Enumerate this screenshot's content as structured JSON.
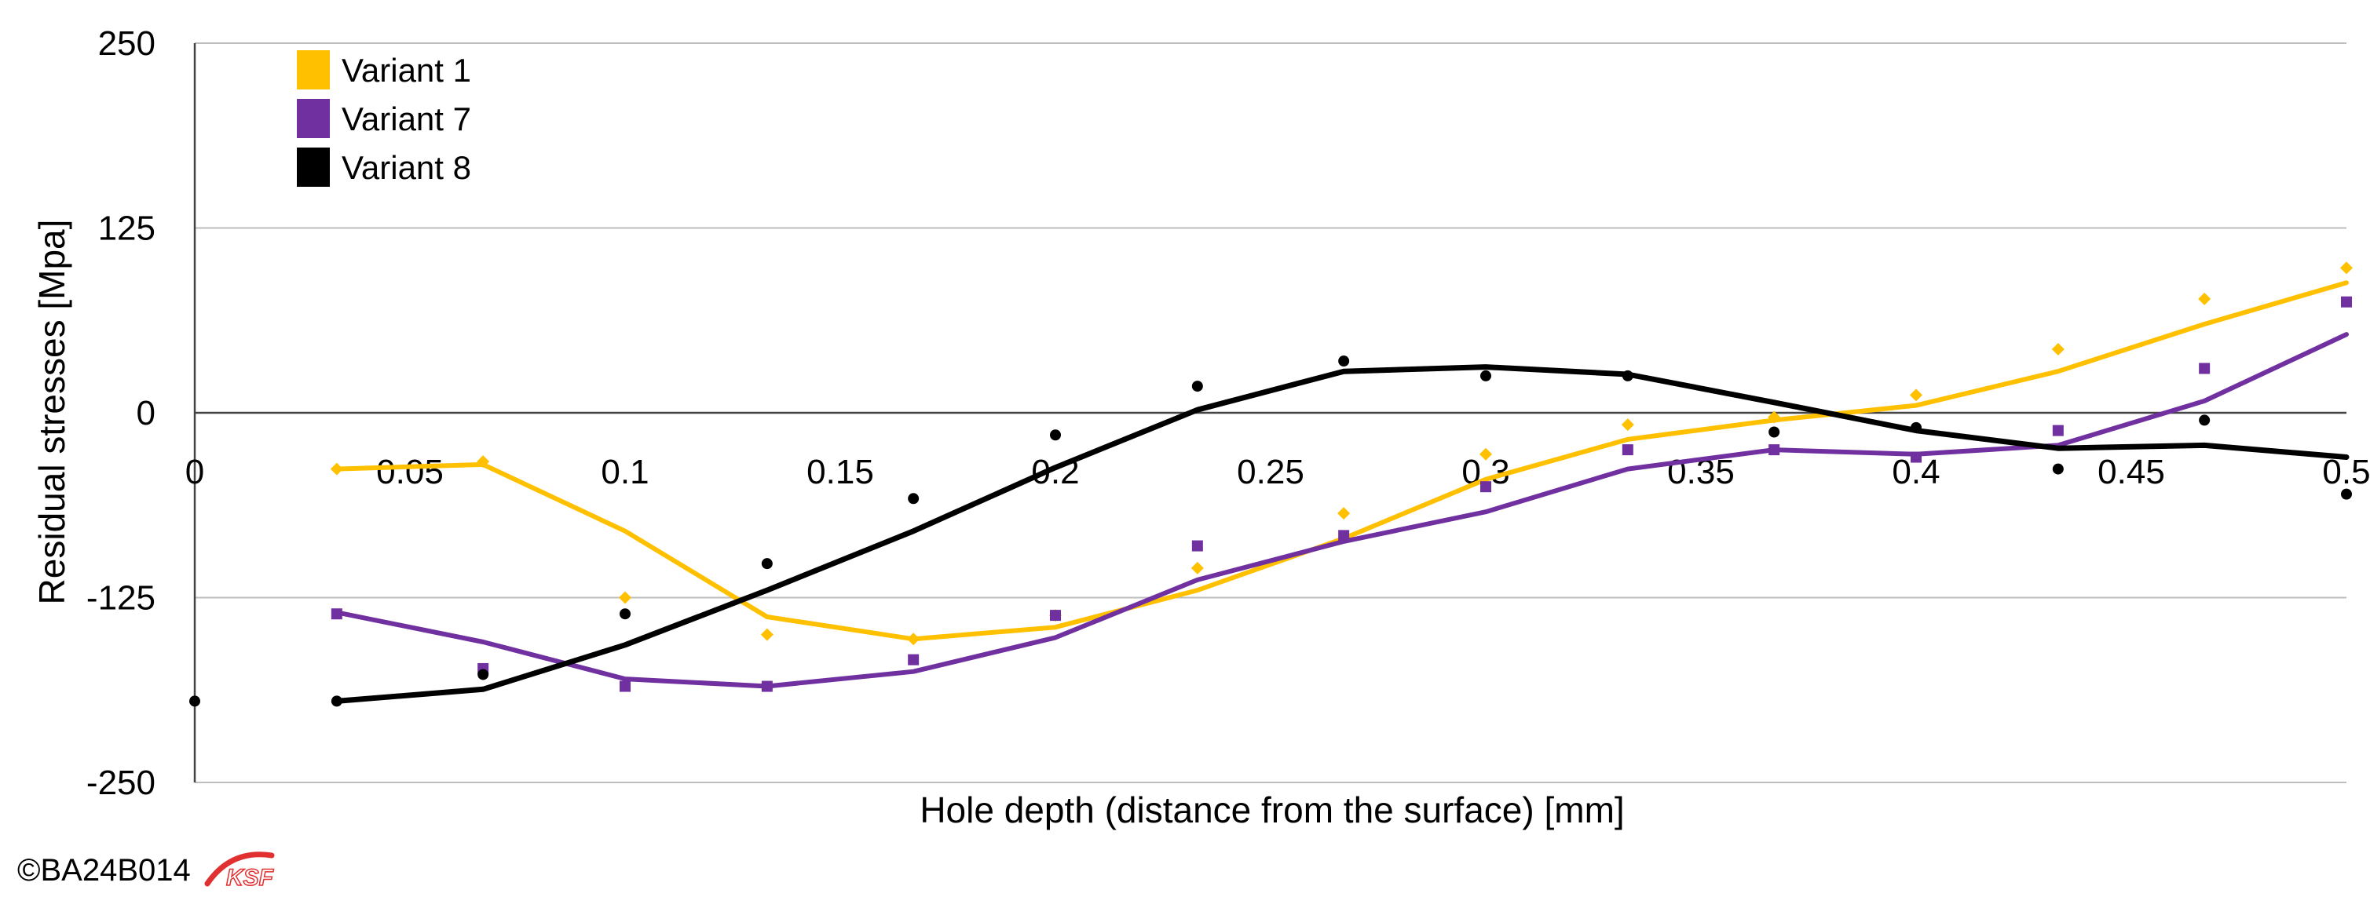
{
  "chart_data": {
    "type": "line",
    "title": "",
    "xlabel": "Hole depth (distance from the surface) [mm]",
    "ylabel": "Residual stresses  [Mpa]",
    "xlim": [
      0,
      0.5
    ],
    "ylim": [
      -250,
      250
    ],
    "x_ticks": [
      "0",
      "0.05",
      "0.1",
      "0.15",
      "0.2",
      "0.25",
      "0.3",
      "0.35",
      "0.4",
      "0.45",
      "0.5"
    ],
    "y_ticks": [
      "250",
      "125",
      "0",
      "-125",
      "-250"
    ],
    "grid": true,
    "legend": "top-left",
    "series": [
      {
        "name": "Variant 1",
        "color": "#FFC000",
        "marker": "diamond",
        "points": [
          [
            0.033,
            -38
          ],
          [
            0.067,
            -33
          ],
          [
            0.1,
            -125
          ],
          [
            0.133,
            -150
          ],
          [
            0.167,
            -153
          ],
          [
            0.2,
            -137
          ],
          [
            0.233,
            -105
          ],
          [
            0.267,
            -68
          ],
          [
            0.3,
            -28
          ],
          [
            0.333,
            -8
          ],
          [
            0.367,
            -3
          ],
          [
            0.4,
            12
          ],
          [
            0.433,
            43
          ],
          [
            0.467,
            77
          ],
          [
            0.5,
            98
          ]
        ],
        "trend": [
          [
            0.033,
            -38
          ],
          [
            0.067,
            -35
          ],
          [
            0.1,
            -80
          ],
          [
            0.133,
            -138
          ],
          [
            0.167,
            -153
          ],
          [
            0.2,
            -145
          ],
          [
            0.233,
            -120
          ],
          [
            0.267,
            -85
          ],
          [
            0.3,
            -45
          ],
          [
            0.333,
            -18
          ],
          [
            0.367,
            -5
          ],
          [
            0.4,
            5
          ],
          [
            0.433,
            28
          ],
          [
            0.467,
            60
          ],
          [
            0.5,
            88
          ]
        ]
      },
      {
        "name": "Variant 7",
        "color": "#7030A0",
        "marker": "square",
        "points": [
          [
            0.033,
            -136
          ],
          [
            0.067,
            -173
          ],
          [
            0.1,
            -185
          ],
          [
            0.133,
            -185
          ],
          [
            0.167,
            -167
          ],
          [
            0.2,
            -137
          ],
          [
            0.233,
            -90
          ],
          [
            0.267,
            -83
          ],
          [
            0.3,
            -50
          ],
          [
            0.333,
            -25
          ],
          [
            0.367,
            -25
          ],
          [
            0.4,
            -30
          ],
          [
            0.433,
            -12
          ],
          [
            0.467,
            30
          ],
          [
            0.5,
            75
          ]
        ],
        "trend": [
          [
            0.033,
            -135
          ],
          [
            0.067,
            -155
          ],
          [
            0.1,
            -180
          ],
          [
            0.133,
            -185
          ],
          [
            0.167,
            -175
          ],
          [
            0.2,
            -152
          ],
          [
            0.233,
            -113
          ],
          [
            0.267,
            -87
          ],
          [
            0.3,
            -67
          ],
          [
            0.333,
            -38
          ],
          [
            0.367,
            -25
          ],
          [
            0.4,
            -28
          ],
          [
            0.433,
            -22
          ],
          [
            0.467,
            8
          ],
          [
            0.5,
            53
          ]
        ]
      },
      {
        "name": "Variant 8",
        "color": "#000000",
        "marker": "circle",
        "points": [
          [
            0.0,
            -195
          ],
          [
            0.033,
            -195
          ],
          [
            0.067,
            -177
          ],
          [
            0.1,
            -136
          ],
          [
            0.133,
            -102
          ],
          [
            0.167,
            -58
          ],
          [
            0.2,
            -15
          ],
          [
            0.233,
            18
          ],
          [
            0.267,
            35
          ],
          [
            0.3,
            25
          ],
          [
            0.333,
            25
          ],
          [
            0.367,
            -13
          ],
          [
            0.4,
            -10
          ],
          [
            0.433,
            -38
          ],
          [
            0.467,
            -5
          ],
          [
            0.5,
            -55
          ]
        ],
        "trend": [
          [
            0.033,
            -195
          ],
          [
            0.067,
            -187
          ],
          [
            0.1,
            -157
          ],
          [
            0.133,
            -120
          ],
          [
            0.167,
            -80
          ],
          [
            0.2,
            -37
          ],
          [
            0.233,
            2
          ],
          [
            0.267,
            28
          ],
          [
            0.3,
            31
          ],
          [
            0.333,
            26
          ],
          [
            0.367,
            7
          ],
          [
            0.4,
            -12
          ],
          [
            0.433,
            -24
          ],
          [
            0.467,
            -22
          ],
          [
            0.5,
            -30
          ]
        ]
      }
    ]
  },
  "copyright": "©BA24B014",
  "logo_text": "KSF"
}
